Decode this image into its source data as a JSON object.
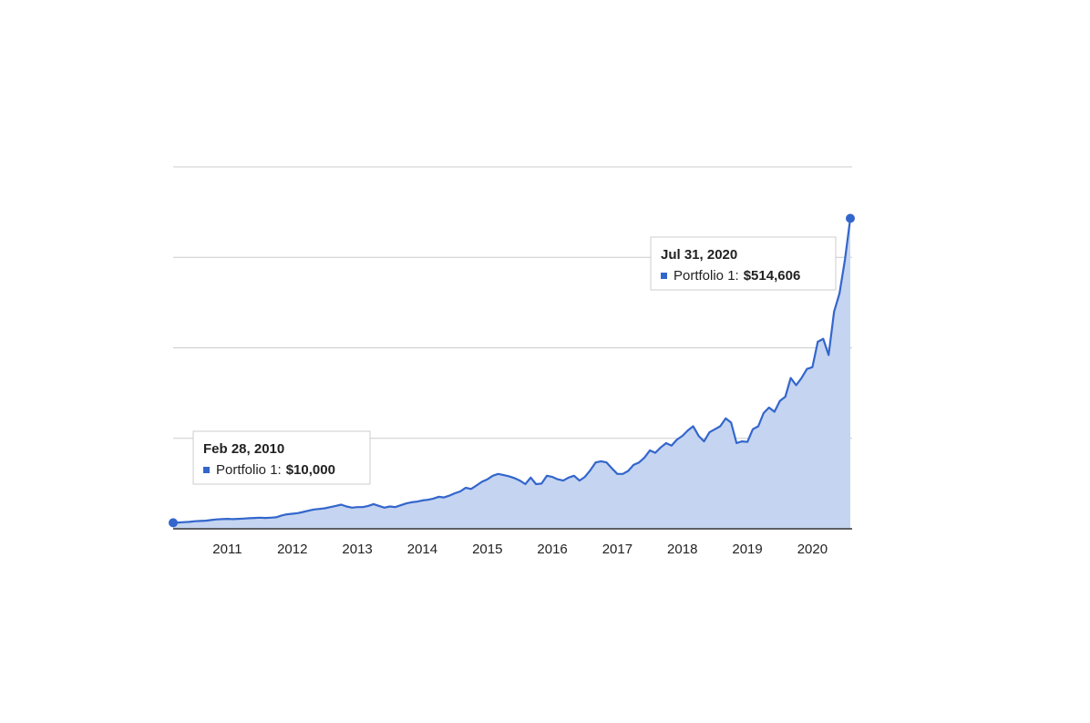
{
  "chart_data": {
    "type": "area",
    "x": [
      "2010-02",
      "2010-03",
      "2010-04",
      "2010-05",
      "2010-06",
      "2010-07",
      "2010-08",
      "2010-09",
      "2010-10",
      "2010-11",
      "2010-12",
      "2011-01",
      "2011-02",
      "2011-03",
      "2011-04",
      "2011-05",
      "2011-06",
      "2011-07",
      "2011-08",
      "2011-09",
      "2011-10",
      "2011-11",
      "2011-12",
      "2012-01",
      "2012-02",
      "2012-03",
      "2012-04",
      "2012-05",
      "2012-06",
      "2012-07",
      "2012-08",
      "2012-09",
      "2012-10",
      "2012-11",
      "2012-12",
      "2013-01",
      "2013-02",
      "2013-03",
      "2013-04",
      "2013-05",
      "2013-06",
      "2013-07",
      "2013-08",
      "2013-09",
      "2013-10",
      "2013-11",
      "2013-12",
      "2014-01",
      "2014-02",
      "2014-03",
      "2014-04",
      "2014-05",
      "2014-06",
      "2014-07",
      "2014-08",
      "2014-09",
      "2014-10",
      "2014-11",
      "2014-12",
      "2015-01",
      "2015-02",
      "2015-03",
      "2015-04",
      "2015-05",
      "2015-06",
      "2015-07",
      "2015-08",
      "2015-09",
      "2015-10",
      "2015-11",
      "2015-12",
      "2016-01",
      "2016-02",
      "2016-03",
      "2016-04",
      "2016-05",
      "2016-06",
      "2016-07",
      "2016-08",
      "2016-09",
      "2016-10",
      "2016-11",
      "2016-12",
      "2017-01",
      "2017-02",
      "2017-03",
      "2017-04",
      "2017-05",
      "2017-06",
      "2017-07",
      "2017-08",
      "2017-09",
      "2017-10",
      "2017-11",
      "2017-12",
      "2018-01",
      "2018-02",
      "2018-03",
      "2018-04",
      "2018-05",
      "2018-06",
      "2018-07",
      "2018-08",
      "2018-09",
      "2018-10",
      "2018-11",
      "2018-12",
      "2019-01",
      "2019-02",
      "2019-03",
      "2019-04",
      "2019-05",
      "2019-06",
      "2019-07",
      "2019-08",
      "2019-09",
      "2019-10",
      "2019-11",
      "2019-12",
      "2020-01",
      "2020-02",
      "2020-03",
      "2020-04",
      "2020-05",
      "2020-06",
      "2020-07"
    ],
    "values": [
      10000,
      10500,
      11000,
      11500,
      12500,
      13000,
      13500,
      14500,
      15500,
      16000,
      16500,
      16000,
      16500,
      17000,
      17500,
      18000,
      18500,
      18000,
      18500,
      19000,
      22000,
      24000,
      25000,
      26000,
      28000,
      30000,
      32000,
      33000,
      34000,
      36000,
      38000,
      40000,
      37000,
      35000,
      36000,
      36000,
      38000,
      41000,
      38000,
      35000,
      37000,
      36000,
      39000,
      42000,
      44000,
      45000,
      47000,
      48000,
      50000,
      53000,
      52000,
      55000,
      59000,
      62000,
      68000,
      66000,
      72000,
      78000,
      82000,
      88000,
      91000,
      89000,
      87000,
      84000,
      80000,
      74000,
      85000,
      74000,
      75000,
      88000,
      86000,
      82000,
      80000,
      85000,
      88000,
      80000,
      86000,
      97000,
      110000,
      112000,
      110000,
      100000,
      91000,
      91000,
      96000,
      106000,
      110000,
      118000,
      130000,
      126000,
      135000,
      142000,
      138000,
      148000,
      154000,
      163000,
      170000,
      154000,
      145000,
      160000,
      165000,
      170000,
      183000,
      176000,
      142000,
      145000,
      144000,
      165000,
      170000,
      192000,
      201000,
      194000,
      212000,
      219000,
      250000,
      238000,
      250000,
      265000,
      268000,
      310000,
      315000,
      288000,
      360000,
      390000,
      446000,
      514606
    ],
    "color": "#3366cc",
    "fill": "#c5d4f0",
    "xlim": [
      "2010-02",
      "2020-07"
    ],
    "xticks": [
      2011,
      2012,
      2013,
      2014,
      2015,
      2016,
      2017,
      2018,
      2019,
      2020
    ],
    "ylim": [
      0,
      600000
    ],
    "ygrid": [
      150000,
      300000,
      450000,
      600000
    ],
    "annotations": [
      {
        "index": 0,
        "title": "Feb 28, 2010",
        "label": "Portfolio 1:",
        "value": 10000,
        "value_label": "$10,000"
      },
      {
        "index": 125,
        "title": "Jul 31, 2020",
        "label": "Portfolio 1:",
        "value": 514606,
        "value_label": "$514,606"
      }
    ]
  }
}
